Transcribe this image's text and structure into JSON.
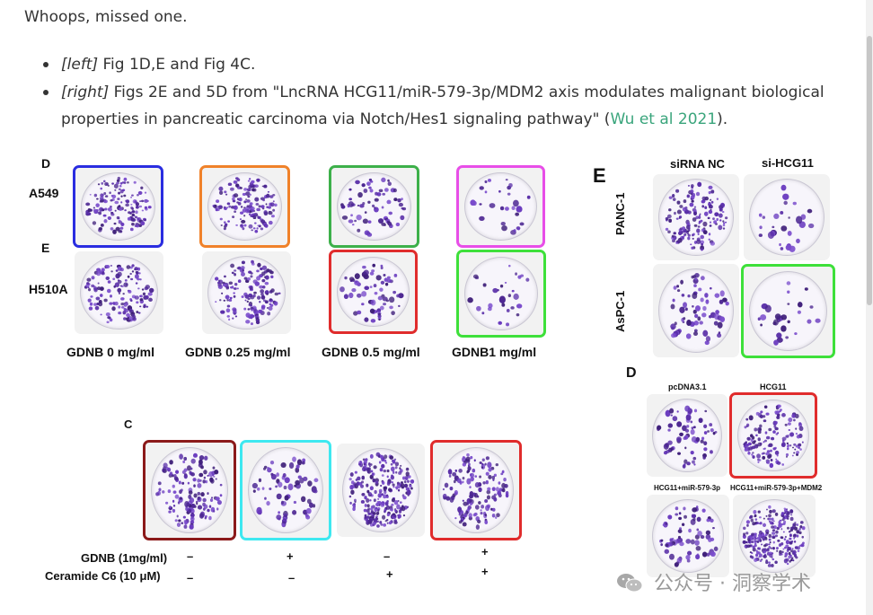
{
  "post": {
    "intro": "Whoops, missed one.",
    "bullet1": {
      "tag": "[left]",
      "text": " Fig 1D,E and Fig 4C."
    },
    "bullet2": {
      "tag": "[right]",
      "text_line1": " Figs 2E and 5D from \"LncRNA HCG11/miR-579-3p/MDM2 axis modulates malignant biological",
      "text_line2_pre": "properties in pancreatic carcinoma via Notch/Hes1 signaling pathway\" (",
      "link": "Wu et al 2021",
      "text_line2_post": ")."
    }
  },
  "left_figure": {
    "panel_D": "D",
    "panel_E": "E",
    "row1_label": "A549",
    "row2_label": "H510A",
    "col_labels": [
      "GDNB 0 mg/ml",
      "GDNB 0.25 mg/ml",
      "GDNB 0.5 mg/ml",
      "GDNB1 mg/ml"
    ],
    "panel_C": "C",
    "c_row1_label": "GDNB (1mg/ml)",
    "c_row2_label": "Ceramide C6 (10 μM)",
    "c_row1_signs": [
      "–",
      "+",
      "–",
      "+"
    ],
    "c_row2_signs": [
      "–",
      "–",
      "+",
      "+"
    ]
  },
  "right_figure": {
    "panel_E": "E",
    "col_labels": [
      "siRNA NC",
      "si-HCG11"
    ],
    "row_labels": [
      "PANC-1",
      "AsPC-1"
    ],
    "panel_D": "D",
    "d_labels": [
      "pcDNA3.1",
      "HCG11",
      "HCG11+miR-579-3p",
      "HCG11+miR-579-3p+MDM2"
    ]
  },
  "highlight_colors": {
    "blue": "#2a2de0",
    "orange": "#f0822a",
    "green": "#3db04a",
    "magenta": "#e84ee8",
    "red": "#e02c2c",
    "lime": "#3ee03a",
    "darkred": "#8b1a1a",
    "cyan": "#3ee8f0"
  },
  "watermark": "公众号 · 洞察学术"
}
